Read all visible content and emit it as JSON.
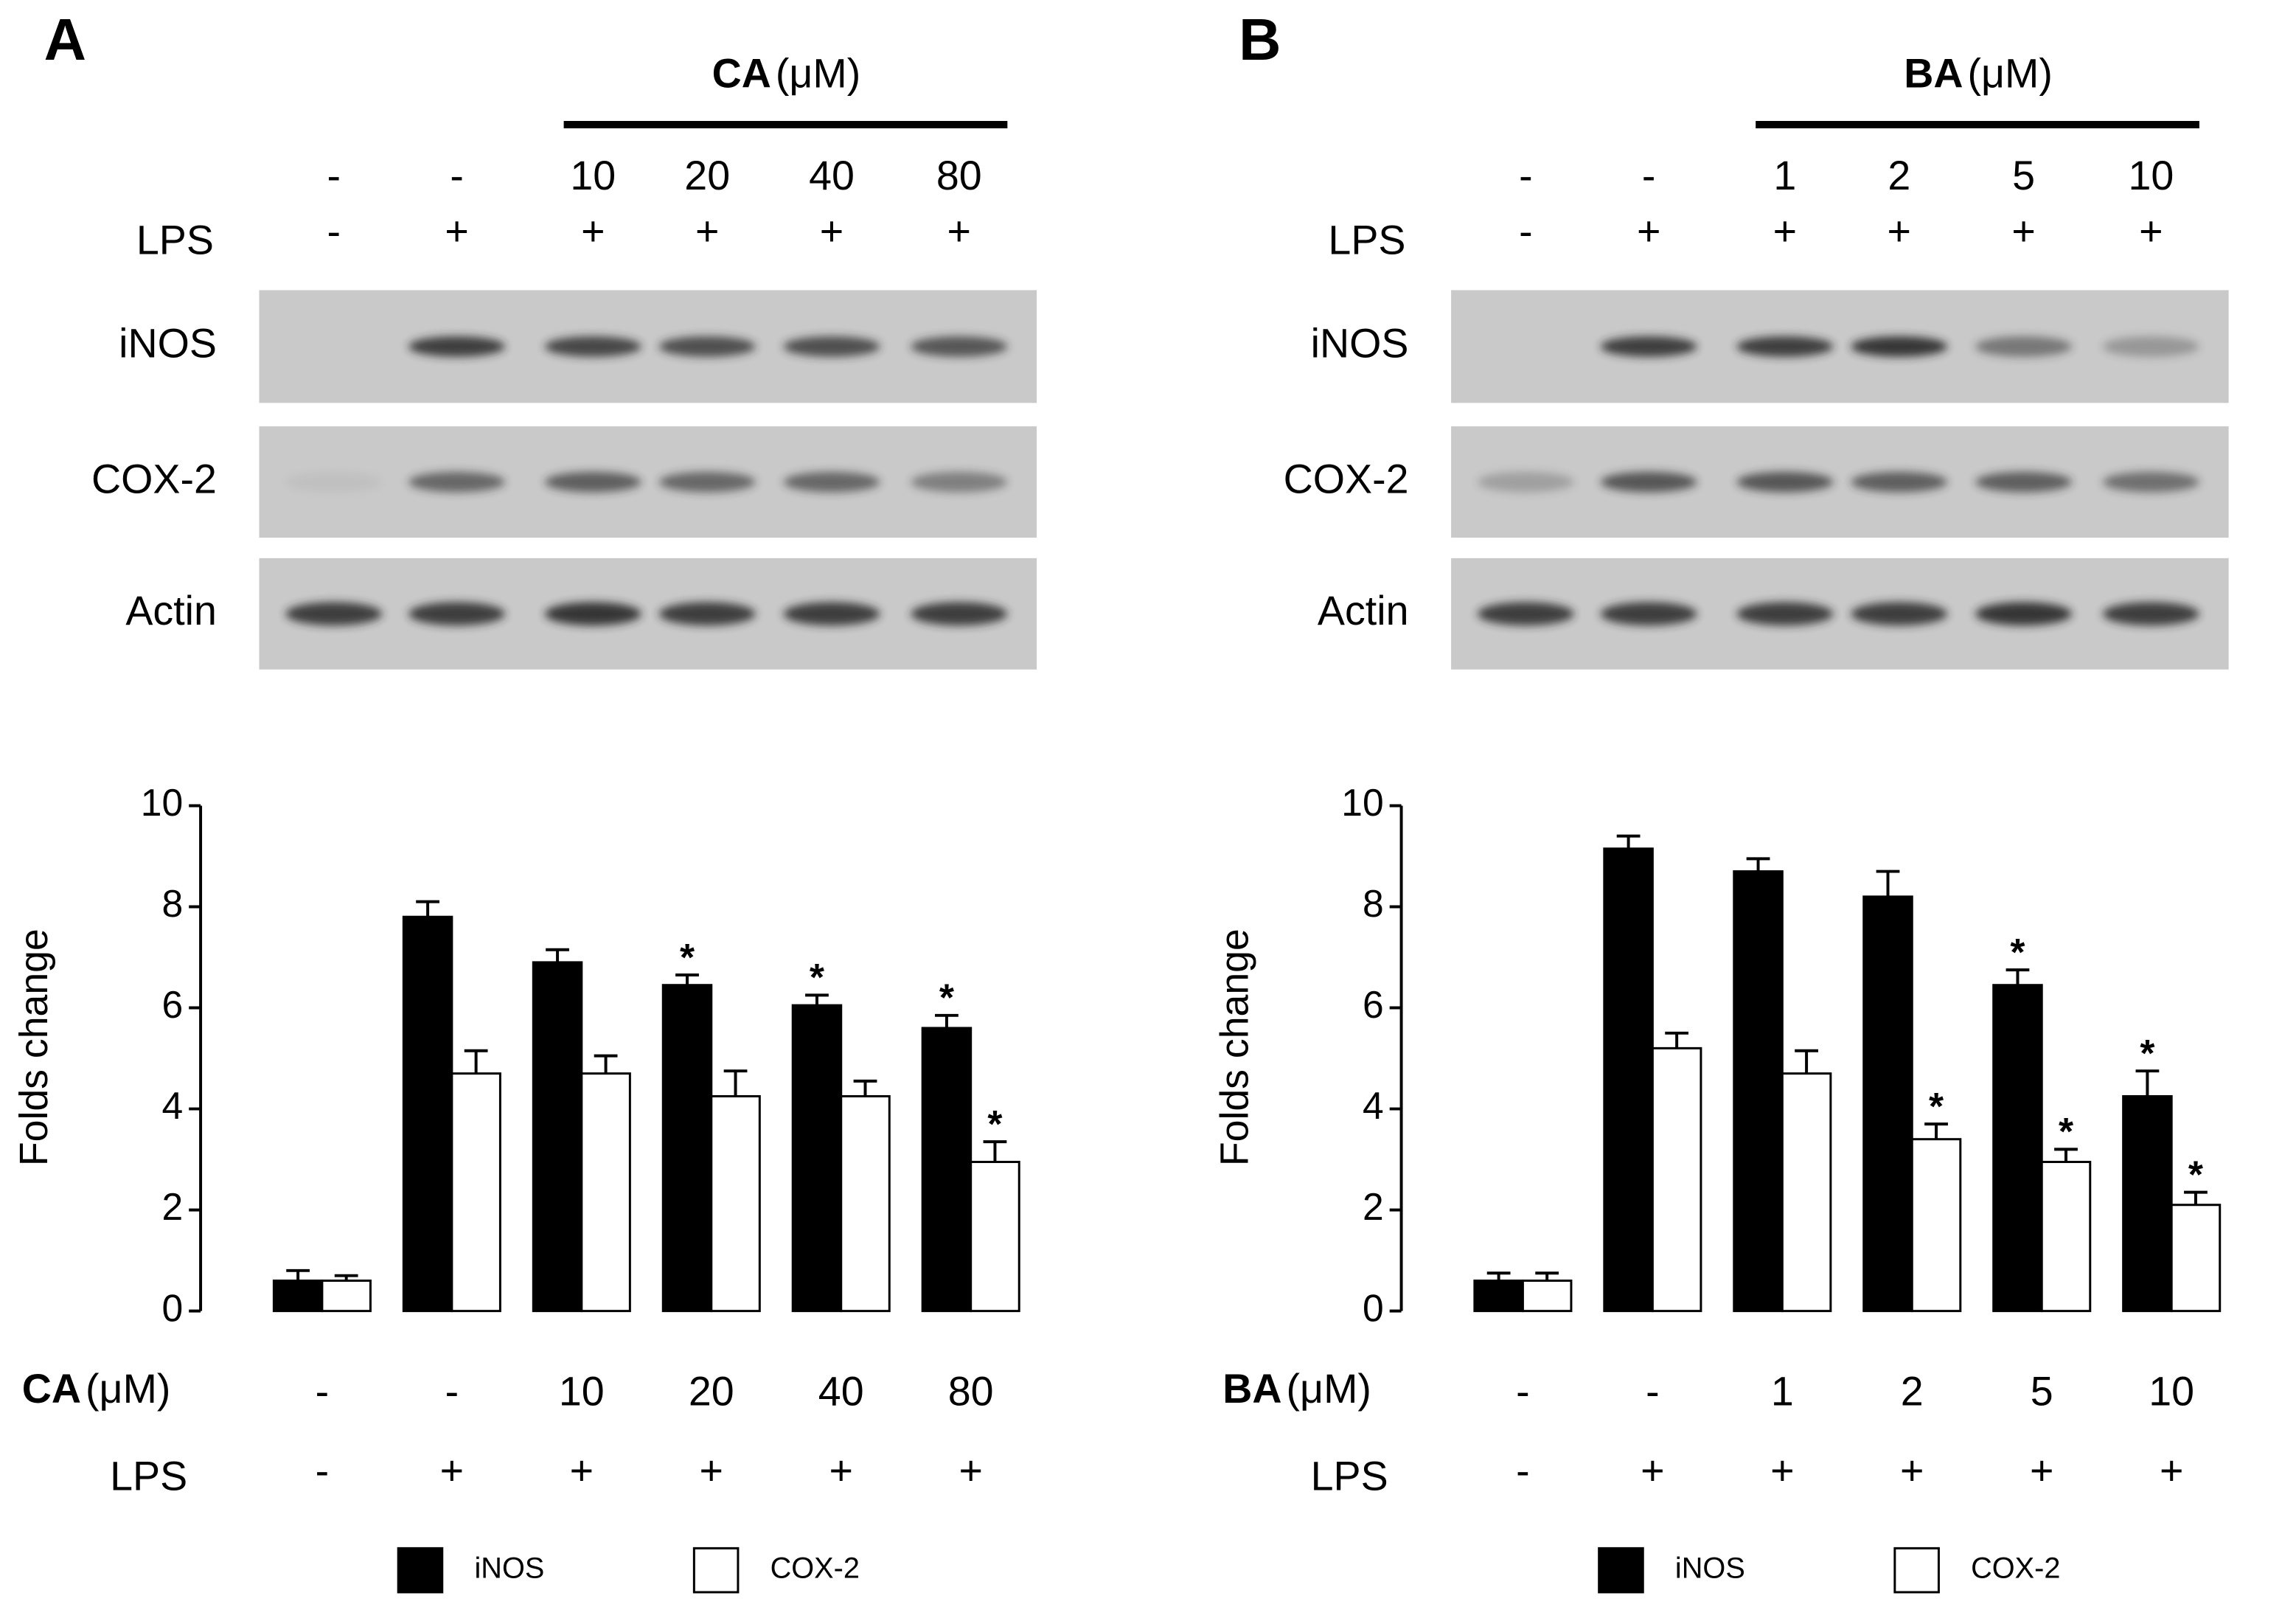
{
  "panels": [
    {
      "label": "A",
      "treatment": "CA",
      "unit": "(μM)",
      "doses": [
        "-",
        "-",
        "10",
        "20",
        "40",
        "80"
      ],
      "lps_label": "LPS",
      "lps": [
        "-",
        "+",
        "+",
        "+",
        "+",
        "+"
      ],
      "blots": [
        "iNOS",
        "COX-2",
        "Actin"
      ]
    },
    {
      "label": "B",
      "treatment": "BA",
      "unit": "(μM)",
      "doses": [
        "-",
        "-",
        "1",
        "2",
        "5",
        "10"
      ],
      "lps_label": "LPS",
      "lps": [
        "-",
        "+",
        "+",
        "+",
        "+",
        "+"
      ],
      "blots": [
        "iNOS",
        "COX-2",
        "Actin"
      ]
    }
  ],
  "chart_data": [
    {
      "type": "bar",
      "y_label": "Folds change",
      "x_label": "CA",
      "x_unit": "(μM)",
      "categories": [
        "-",
        "-",
        "10",
        "20",
        "40",
        "80"
      ],
      "lps_label": "LPS",
      "lps": [
        "-",
        "+",
        "+",
        "+",
        "+",
        "+"
      ],
      "ylim": [
        0,
        10
      ],
      "yticks": [
        0,
        2,
        4,
        6,
        8,
        10
      ],
      "series": [
        {
          "name": "iNOS",
          "color": "#000000",
          "values": [
            0.6,
            7.8,
            6.9,
            6.45,
            6.05,
            5.6
          ],
          "errors": [
            0.2,
            0.3,
            0.25,
            0.2,
            0.2,
            0.25
          ],
          "annotations": [
            null,
            null,
            null,
            "*",
            "*",
            "*"
          ]
        },
        {
          "name": "COX-2",
          "color": "#ffffff",
          "values": [
            0.6,
            4.7,
            4.7,
            4.25,
            4.25,
            2.95
          ],
          "errors": [
            0.1,
            0.45,
            0.35,
            0.5,
            0.3,
            0.4
          ],
          "annotations": [
            null,
            null,
            null,
            null,
            null,
            "*"
          ]
        }
      ]
    },
    {
      "type": "bar",
      "y_label": "Folds change",
      "x_label": "BA",
      "x_unit": "(μM)",
      "categories": [
        "-",
        "-",
        "1",
        "2",
        "5",
        "10"
      ],
      "lps_label": "LPS",
      "lps": [
        "-",
        "+",
        "+",
        "+",
        "+",
        "+"
      ],
      "ylim": [
        0,
        10
      ],
      "yticks": [
        0,
        2,
        4,
        6,
        8,
        10
      ],
      "series": [
        {
          "name": "iNOS",
          "color": "#000000",
          "values": [
            0.6,
            9.15,
            8.7,
            8.2,
            6.45,
            4.25
          ],
          "errors": [
            0.15,
            0.25,
            0.25,
            0.5,
            0.3,
            0.5
          ],
          "annotations": [
            null,
            null,
            null,
            null,
            "*",
            "*"
          ]
        },
        {
          "name": "COX-2",
          "color": "#ffffff",
          "values": [
            0.6,
            5.2,
            4.7,
            3.4,
            2.95,
            2.1
          ],
          "errors": [
            0.15,
            0.3,
            0.45,
            0.3,
            0.25,
            0.25
          ],
          "annotations": [
            null,
            null,
            null,
            "*",
            "*",
            "*"
          ]
        }
      ]
    }
  ]
}
